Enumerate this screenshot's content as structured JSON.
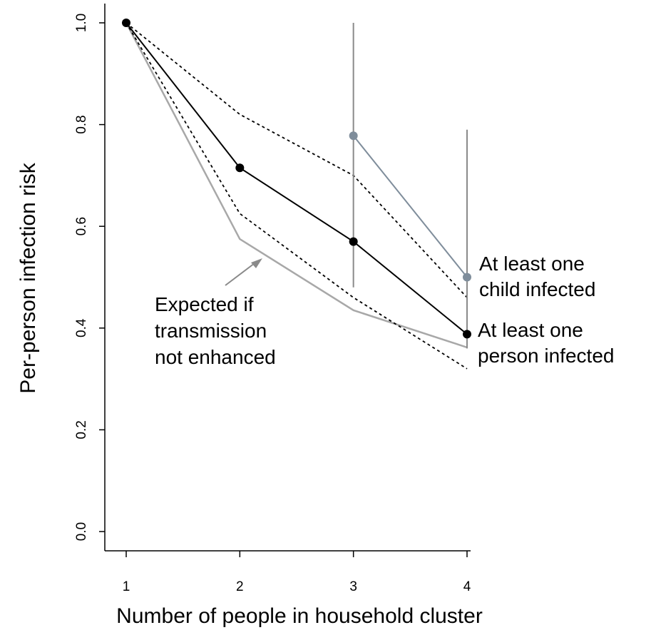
{
  "chart_data": {
    "type": "line",
    "xlabel": "Number of people in household cluster",
    "ylabel": "Per-person infection risk",
    "x_ticks": [
      1,
      2,
      3,
      4
    ],
    "y_ticks": [
      "0.0",
      "0.2",
      "0.4",
      "0.6",
      "0.8",
      "1.0"
    ],
    "xlim": [
      1,
      4
    ],
    "ylim": [
      0,
      1
    ],
    "grid": false,
    "series": [
      {
        "name": "At least one person infected",
        "label_lines": [
          "At least one",
          "person infected"
        ],
        "style": "solid-points",
        "color": "#000000",
        "x": [
          1,
          2,
          3,
          4
        ],
        "y": [
          1.0,
          0.715,
          0.57,
          0.388
        ]
      },
      {
        "name": "At least one child infected",
        "label_lines": [
          "At least one",
          "child infected"
        ],
        "style": "solid-points",
        "color": "#7f8d9b",
        "x": [
          3,
          4
        ],
        "y": [
          0.778,
          0.5
        ],
        "error_bars": [
          {
            "x": 3,
            "low": 0.48,
            "high": 1.0
          },
          {
            "x": 4,
            "low": 0.36,
            "high": 0.79
          }
        ]
      },
      {
        "name": "",
        "style": "dashed",
        "color": "#000000",
        "x": [
          1,
          2,
          3,
          4
        ],
        "y": [
          1.0,
          0.82,
          0.7,
          0.46
        ]
      },
      {
        "name": "",
        "style": "dashed",
        "color": "#000000",
        "x": [
          1,
          2,
          3,
          4
        ],
        "y": [
          1.0,
          0.625,
          0.46,
          0.32
        ]
      },
      {
        "name": "Expected if transmission not enhanced",
        "label_lines": [
          "Expected if",
          "transmission",
          "not enhanced"
        ],
        "style": "solid",
        "color": "#a8a8a8",
        "x": [
          1,
          2,
          3,
          4
        ],
        "y": [
          1.0,
          0.575,
          0.435,
          0.362
        ]
      }
    ]
  }
}
